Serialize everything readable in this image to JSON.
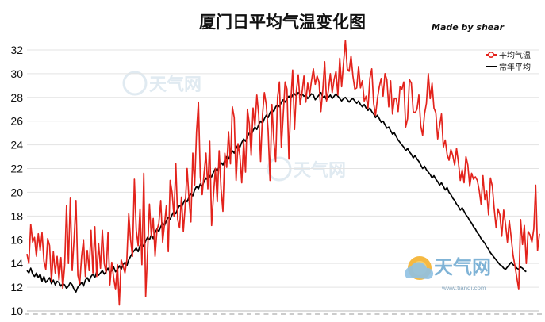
{
  "chart_data": {
    "type": "line",
    "title": "厦门日平均气温变化图",
    "credit": "Made by shear",
    "ylim": [
      10,
      33
    ],
    "yticks": [
      10,
      12,
      14,
      16,
      18,
      20,
      22,
      24,
      26,
      28,
      30,
      32
    ],
    "grid": true,
    "legend_position": "top-right",
    "series": [
      {
        "name": "平均气温",
        "color": "#e3231c",
        "marker": "circle-outline",
        "values": [
          14.8,
          14.0,
          17.3,
          15.8,
          16.2,
          14.6,
          16.5,
          15.1,
          16.6,
          14.2,
          13.5,
          16.1,
          15.5,
          12.5,
          15.0,
          13.2,
          14.6,
          12.6,
          14.5,
          11.9,
          13.8,
          18.9,
          14.0,
          19.5,
          13.4,
          16.1,
          19.3,
          13.0,
          12.3,
          14.6,
          16.0,
          12.9,
          15.1,
          13.4,
          16.8,
          13.2,
          17.1,
          12.9,
          15.7,
          13.6,
          16.8,
          14.0,
          13.2,
          16.6,
          12.2,
          14.1,
          12.8,
          11.8,
          13.9,
          10.5,
          14.3,
          13.8,
          13.2,
          14.3,
          18.2,
          16.0,
          14.6,
          21.1,
          16.8,
          15.5,
          18.6,
          13.9,
          21.6,
          11.2,
          14.9,
          19.0,
          16.3,
          17.8,
          14.6,
          16.8,
          17.4,
          19.3,
          15.8,
          17.3,
          18.9,
          15.0,
          21.0,
          20.0,
          18.0,
          22.4,
          17.7,
          17.0,
          19.6,
          16.7,
          18.9,
          22.0,
          19.4,
          17.5,
          23.3,
          20.6,
          25.1,
          27.6,
          21.3,
          19.8,
          21.6,
          23.3,
          20.3,
          24.3,
          17.2,
          19.8,
          22.0,
          19.2,
          23.5,
          20.3,
          18.4,
          23.3,
          22.1,
          25.1,
          22.4,
          27.2,
          26.3,
          21.0,
          24.1,
          23.1,
          20.8,
          24.3,
          21.7,
          27.0,
          25.8,
          23.1,
          27.1,
          25.6,
          28.2,
          26.5,
          22.6,
          26.5,
          28.4,
          27.4,
          25.2,
          21.0,
          27.4,
          24.4,
          22.6,
          28.0,
          29.3,
          23.8,
          26.5,
          29.3,
          28.7,
          22.8,
          27.6,
          30.3,
          25.3,
          28.6,
          29.9,
          27.4,
          28.4,
          29.8,
          27.6,
          29.2,
          28.2,
          29.4,
          30.4,
          29.1,
          29.8,
          29.3,
          26.8,
          28.6,
          31.0,
          27.7,
          28.6,
          30.0,
          28.4,
          29.5,
          30.2,
          28.2,
          31.3,
          28.9,
          30.9,
          32.8,
          30.4,
          30.2,
          31.5,
          29.8,
          28.7,
          28.8,
          30.6,
          28.8,
          29.4,
          27.7,
          28.1,
          27.1,
          29.6,
          30.4,
          27.5,
          26.5,
          27.9,
          28.9,
          29.6,
          28.1,
          30.0,
          29.5,
          27.2,
          29.4,
          26.6,
          27.9,
          27.9,
          26.8,
          28.9,
          28.7,
          29.3,
          25.5,
          26.2,
          29.5,
          29.2,
          26.8,
          26.7,
          27.0,
          28.2,
          25.6,
          24.8,
          26.6,
          27.5,
          30.0,
          27.9,
          29.2,
          27.1,
          26.7,
          24.5,
          25.6,
          26.6,
          23.8,
          24.4,
          23.2,
          22.7,
          23.6,
          23.1,
          22.3,
          23.7,
          22.5,
          21.0,
          21.9,
          20.8,
          23.0,
          22.3,
          20.5,
          21.6,
          21.1,
          21.3,
          21.0,
          20.2,
          19.0,
          21.4,
          19.4,
          20.1,
          18.1,
          21.2,
          20.5,
          18.6,
          17.0,
          18.6,
          18.1,
          16.3,
          18.5,
          17.3,
          15.8,
          17.6,
          16.2,
          14.7,
          13.8,
          12.8,
          11.8,
          17.7,
          15.6,
          17.2,
          14.0,
          16.7,
          16.4,
          15.8,
          16.9,
          20.6,
          15.1,
          16.5
        ]
      },
      {
        "name": "常年平均",
        "color": "#000000",
        "values": [
          13.4,
          13.2,
          13.6,
          13.1,
          12.9,
          13.2,
          12.8,
          13.1,
          12.5,
          12.9,
          12.4,
          12.6,
          12.8,
          12.3,
          12.6,
          12.2,
          12.5,
          12.4,
          12.1,
          12.3,
          12.2,
          11.9,
          12.1,
          12.4,
          12.2,
          11.8,
          11.6,
          12.0,
          12.2,
          12.4,
          12.1,
          12.6,
          12.8,
          12.5,
          12.9,
          13.1,
          12.8,
          13.3,
          13.0,
          13.2,
          13.4,
          13.1,
          13.3,
          13.6,
          13.2,
          13.4,
          13.7,
          13.3,
          13.5,
          13.8,
          13.5,
          13.9,
          14.1,
          13.8,
          14.3,
          14.6,
          14.9,
          15.1,
          15.3,
          15.0,
          15.5,
          15.7,
          15.4,
          15.9,
          16.2,
          16.0,
          16.4,
          16.1,
          16.6,
          16.9,
          16.7,
          17.1,
          17.4,
          17.2,
          17.6,
          17.9,
          17.7,
          18.1,
          18.4,
          18.2,
          18.6,
          18.9,
          18.7,
          19.1,
          19.4,
          19.2,
          19.6,
          19.9,
          19.7,
          20.2,
          20.5,
          20.3,
          20.7,
          20.5,
          20.9,
          21.2,
          21.0,
          21.4,
          21.3,
          21.7,
          22.0,
          21.8,
          22.2,
          22.5,
          22.3,
          22.7,
          23.0,
          22.8,
          23.2,
          23.5,
          23.3,
          23.7,
          24.0,
          23.8,
          24.2,
          24.5,
          24.3,
          24.7,
          25.0,
          24.8,
          25.2,
          25.5,
          25.3,
          25.7,
          26.0,
          25.8,
          26.2,
          26.5,
          26.3,
          26.7,
          27.0,
          26.8,
          27.2,
          27.4,
          27.2,
          27.6,
          27.8,
          27.6,
          27.9,
          28.1,
          27.9,
          28.2,
          28.3,
          28.1,
          28.4,
          28.2,
          28.3,
          28.1,
          28.2,
          27.9,
          28.1,
          28.3,
          28.2,
          27.8,
          28.0,
          28.2,
          28.4,
          28.0,
          28.1,
          27.8,
          28.0,
          28.2,
          27.9,
          28.1,
          28.3,
          28.1,
          27.9,
          27.7,
          27.9,
          28.0,
          27.8,
          27.6,
          27.8,
          27.9,
          27.7,
          27.5,
          27.7,
          27.4,
          27.2,
          27.4,
          27.1,
          26.9,
          27.1,
          26.8,
          26.6,
          26.3,
          26.5,
          26.2,
          25.9,
          26.0,
          25.7,
          25.4,
          25.5,
          25.2,
          24.9,
          25.0,
          24.7,
          24.4,
          24.2,
          24.0,
          23.8,
          23.5,
          23.7,
          23.4,
          23.2,
          22.9,
          23.1,
          22.8,
          22.6,
          22.3,
          22.0,
          22.2,
          21.9,
          21.7,
          21.5,
          21.2,
          21.4,
          21.1,
          20.9,
          20.6,
          20.8,
          20.5,
          20.2,
          20.4,
          20.0,
          19.8,
          19.5,
          19.3,
          19.0,
          18.8,
          18.5,
          18.7,
          18.4,
          18.1,
          17.9,
          17.6,
          17.4,
          17.1,
          16.9,
          16.6,
          16.4,
          16.1,
          15.9,
          15.7,
          15.4,
          15.2,
          14.9,
          14.7,
          14.5,
          14.3,
          14.1,
          13.9,
          13.8,
          13.6,
          13.5,
          13.7,
          13.9,
          14.1,
          13.9,
          13.8,
          13.6,
          13.5,
          13.7,
          13.6,
          13.4,
          13.3
        ]
      }
    ]
  },
  "watermark": {
    "brand": "天气网",
    "url": "www.tianqi.com"
  }
}
